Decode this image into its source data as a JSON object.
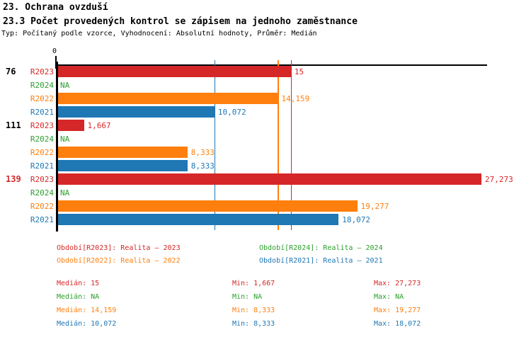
{
  "page": {
    "title": "23. Ochrana ovzduší",
    "subtitle": "23.3 Počet provedených kontrol se zápisem na jednoho zaměstnance",
    "meta": "Typ: Počítaný podle vzorce, Vyhodnocení: Absolutní hodnoty, Průměr: Medián"
  },
  "chart_data": {
    "type": "bar",
    "orientation": "horizontal",
    "title": "23. Ochrana ovzduší",
    "subtitle": "23.3 Počet provedených kontrol se zápisem na jednoho zaměstnance",
    "value_axis": {
      "zero_label": "0",
      "min": 0,
      "max": 27.6,
      "gridlines": false
    },
    "series": [
      {
        "id": "R2023",
        "label": "R2023",
        "color": "#d62728",
        "legend": "Období[R2023]: Realita – 2023"
      },
      {
        "id": "R2024",
        "label": "R2024",
        "color": "#2ca02c",
        "legend": "Období[R2024]: Realita – 2024"
      },
      {
        "id": "R2022",
        "label": "R2022",
        "color": "#ff7f0e",
        "legend": "Období[R2022]: Realita – 2022"
      },
      {
        "id": "R2021",
        "label": "R2021",
        "color": "#1f77b4",
        "legend": "Období[R2021]: Realita – 2021"
      }
    ],
    "groups": [
      {
        "label": "76",
        "label_color": "#000000",
        "bars": [
          {
            "series": "R2023",
            "value": 15,
            "display": "15",
            "color": "#d62728"
          },
          {
            "series": "R2024",
            "value": null,
            "display": "NA",
            "color": "#2ca02c"
          },
          {
            "series": "R2022",
            "value": 14.159,
            "display": "14,159",
            "color": "#ff7f0e"
          },
          {
            "series": "R2021",
            "value": 10.072,
            "display": "10,072",
            "color": "#1f77b4"
          }
        ]
      },
      {
        "label": "111",
        "label_color": "#000000",
        "bars": [
          {
            "series": "R2023",
            "value": 1.667,
            "display": "1,667",
            "color": "#d62728"
          },
          {
            "series": "R2024",
            "value": null,
            "display": "NA",
            "color": "#2ca02c"
          },
          {
            "series": "R2022",
            "value": 8.333,
            "display": "8,333",
            "color": "#ff7f0e"
          },
          {
            "series": "R2021",
            "value": 8.333,
            "display": "8,333",
            "color": "#1f77b4"
          }
        ]
      },
      {
        "label": "139",
        "label_color": "#d62728",
        "bars": [
          {
            "series": "R2023",
            "value": 27.273,
            "display": "27,273",
            "color": "#d62728"
          },
          {
            "series": "R2024",
            "value": null,
            "display": "NA",
            "color": "#2ca02c"
          },
          {
            "series": "R2022",
            "value": 19.277,
            "display": "19,277",
            "color": "#ff7f0e"
          },
          {
            "series": "R2021",
            "value": 18.072,
            "display": "18,072",
            "color": "#1f77b4"
          }
        ]
      }
    ],
    "reference_lines": [
      {
        "series": "R2021",
        "value": 10.072,
        "color": "#1f77b4"
      },
      {
        "series": "R2022",
        "value": 14.159,
        "color": "#ff7f0e"
      },
      {
        "series": "R2023",
        "value": 15,
        "color": "#d62728"
      }
    ],
    "stats": [
      {
        "color": "#d62728",
        "median": "Medián: 15",
        "min": "Min: 1,667",
        "max": "Max: 27,273"
      },
      {
        "color": "#2ca02c",
        "median": "Medián: NA",
        "min": "Min: NA",
        "max": "Max: NA"
      },
      {
        "color": "#ff7f0e",
        "median": "Medián: 14,159",
        "min": "Min: 8,333",
        "max": "Max: 19,277"
      },
      {
        "color": "#1f77b4",
        "median": "Medián: 10,072",
        "min": "Min: 8,333",
        "max": "Max: 18,072"
      }
    ]
  }
}
